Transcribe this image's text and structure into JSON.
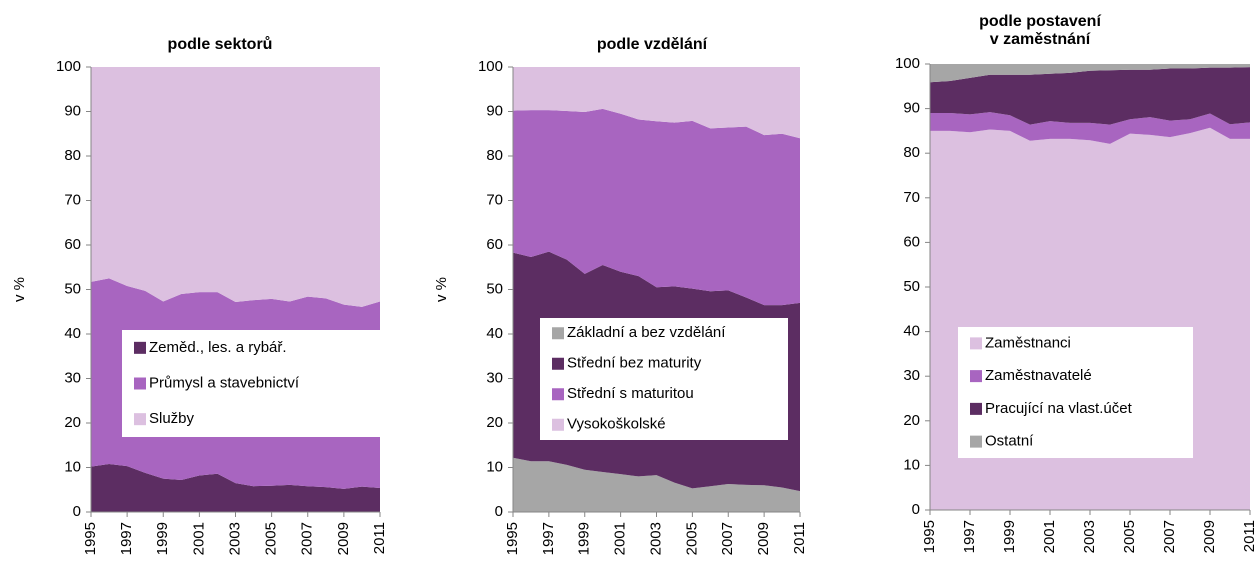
{
  "chart_data": [
    {
      "type": "stacked_area",
      "title": "podle sektorů",
      "ylabel": "v %",
      "x": [
        1995,
        1996,
        1997,
        1998,
        1999,
        2000,
        2001,
        2002,
        2003,
        2004,
        2005,
        2006,
        2007,
        2008,
        2009,
        2010,
        2011
      ],
      "xlim": [
        1995,
        2011
      ],
      "xticks": [
        1995,
        1997,
        1999,
        2001,
        2003,
        2005,
        2007,
        2009,
        2011
      ],
      "ylim": [
        0,
        100
      ],
      "yticks": [
        0,
        10,
        20,
        30,
        40,
        50,
        60,
        70,
        80,
        90,
        100
      ],
      "series": [
        {
          "name": "Zeměd., les. a rybář.",
          "color": "#5c2d62",
          "values": [
            10.2,
            10.8,
            10.3,
            8.8,
            7.5,
            7.2,
            8.2,
            8.6,
            6.5,
            5.8,
            5.9,
            6.1,
            5.8,
            5.6,
            5.2,
            5.7,
            5.4
          ]
        },
        {
          "name": "Průmysl a stavebnictví",
          "color": "#a865c0",
          "values": [
            41.5,
            41.7,
            40.5,
            40.9,
            39.8,
            41.8,
            41.2,
            40.8,
            40.7,
            41.8,
            42.0,
            41.2,
            42.6,
            42.4,
            41.4,
            40.4,
            41.9
          ]
        },
        {
          "name": "Služby",
          "color": "#dcc0e0",
          "values": [
            48.3,
            47.5,
            49.2,
            50.3,
            52.7,
            51.0,
            50.6,
            50.6,
            52.8,
            52.4,
            52.1,
            52.7,
            51.6,
            52.0,
            53.4,
            53.9,
            52.7
          ]
        }
      ]
    },
    {
      "type": "stacked_area",
      "title": "podle vzdělání",
      "ylabel": "v %",
      "x": [
        1995,
        1996,
        1997,
        1998,
        1999,
        2000,
        2001,
        2002,
        2003,
        2004,
        2005,
        2006,
        2007,
        2008,
        2009,
        2010,
        2011
      ],
      "xlim": [
        1995,
        2011
      ],
      "xticks": [
        1995,
        1997,
        1999,
        2001,
        2003,
        2005,
        2007,
        2009,
        2011
      ],
      "ylim": [
        0,
        100
      ],
      "yticks": [
        0,
        10,
        20,
        30,
        40,
        50,
        60,
        70,
        80,
        90,
        100
      ],
      "series": [
        {
          "name": "Základní a bez vzdělání",
          "color": "#a6a6a6",
          "values": [
            12.2,
            11.4,
            11.4,
            10.6,
            9.5,
            9.0,
            8.5,
            8.0,
            8.3,
            6.6,
            5.3,
            5.8,
            6.3,
            6.1,
            6.0,
            5.5,
            4.7
          ]
        },
        {
          "name": "Střední bez maturity",
          "color": "#5c2d62",
          "values": [
            46.1,
            45.9,
            47.1,
            46.1,
            44.0,
            46.5,
            45.5,
            45.0,
            42.2,
            44.1,
            44.9,
            43.8,
            43.5,
            42.1,
            40.5,
            41.0,
            42.3
          ]
        },
        {
          "name": "Střední s maturitou",
          "color": "#a865c0",
          "values": [
            31.9,
            33.0,
            31.8,
            33.4,
            36.4,
            35.1,
            35.5,
            35.2,
            37.3,
            36.8,
            37.7,
            36.6,
            36.6,
            38.4,
            38.2,
            38.5,
            37.0
          ]
        },
        {
          "name": "Vysokoškolské",
          "color": "#dcc0e0",
          "values": [
            9.8,
            9.7,
            9.7,
            9.9,
            10.1,
            9.4,
            10.5,
            11.8,
            12.2,
            12.5,
            12.1,
            13.8,
            13.6,
            13.4,
            15.3,
            15.0,
            16.0
          ]
        }
      ]
    },
    {
      "type": "stacked_area",
      "title": [
        "podle postavení",
        "v zaměstnání"
      ],
      "x": [
        1995,
        1996,
        1997,
        1998,
        1999,
        2000,
        2001,
        2002,
        2003,
        2004,
        2005,
        2006,
        2007,
        2008,
        2009,
        2010,
        2011
      ],
      "xlim": [
        1995,
        2011
      ],
      "xticks": [
        1995,
        1997,
        1999,
        2001,
        2003,
        2005,
        2007,
        2009,
        2011
      ],
      "ylim": [
        0,
        100
      ],
      "yticks": [
        0,
        10,
        20,
        30,
        40,
        50,
        60,
        70,
        80,
        90,
        100
      ],
      "series": [
        {
          "name": "Zaměstnanci",
          "color": "#dcc0e0",
          "values": [
            85.0,
            85.0,
            84.7,
            85.3,
            85.0,
            82.8,
            83.2,
            83.2,
            82.9,
            82.1,
            84.4,
            84.1,
            83.6,
            84.5,
            85.7,
            83.2,
            83.2
          ]
        },
        {
          "name": "Zaměstnavatelé",
          "color": "#a865c0",
          "values": [
            4.0,
            4.0,
            4.0,
            3.9,
            3.5,
            3.6,
            4.0,
            3.6,
            3.9,
            4.3,
            3.2,
            4.0,
            3.7,
            3.1,
            3.2,
            3.3,
            3.7
          ]
        },
        {
          "name": "Pracující na vlast.účet",
          "color": "#5c2d62",
          "values": [
            6.9,
            7.2,
            8.2,
            8.4,
            9.1,
            11.2,
            10.6,
            11.2,
            11.7,
            12.2,
            11.1,
            10.6,
            11.7,
            11.4,
            10.3,
            12.7,
            12.4
          ]
        },
        {
          "name": "Ostatní",
          "color": "#a6a6a6",
          "values": [
            4.1,
            3.8,
            3.1,
            2.4,
            2.4,
            2.4,
            2.2,
            2.0,
            1.5,
            1.4,
            1.3,
            1.3,
            1.0,
            1.0,
            0.8,
            0.8,
            0.7
          ]
        }
      ]
    }
  ]
}
